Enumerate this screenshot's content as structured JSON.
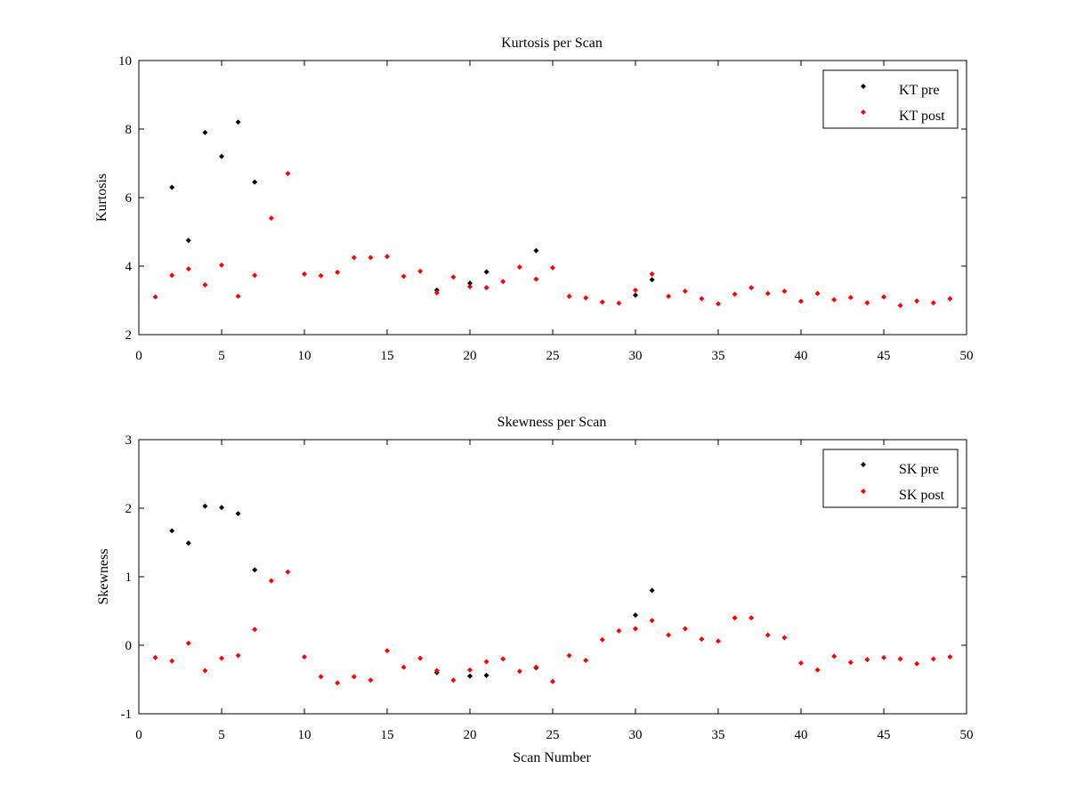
{
  "chart_data": [
    {
      "type": "scatter",
      "title": "Kurtosis per Scan",
      "xlabel": "",
      "ylabel": "Kurtosis",
      "xlim": [
        0,
        50
      ],
      "ylim": [
        2,
        10
      ],
      "xticks": [
        0,
        5,
        10,
        15,
        20,
        25,
        30,
        35,
        40,
        45,
        50
      ],
      "yticks": [
        2,
        4,
        6,
        8,
        10
      ],
      "grid": false,
      "legend_position": "top-right",
      "series": [
        {
          "name": "KT pre",
          "color": "#000000",
          "points": [
            [
              2,
              6.3
            ],
            [
              3,
              4.75
            ],
            [
              4,
              7.9
            ],
            [
              5,
              7.2
            ],
            [
              6,
              8.2
            ],
            [
              7,
              6.45
            ],
            [
              18,
              3.3
            ],
            [
              20,
              3.5
            ],
            [
              21,
              3.83
            ],
            [
              24,
              4.45
            ],
            [
              30,
              3.15
            ],
            [
              31,
              3.6
            ]
          ]
        },
        {
          "name": "KT post",
          "color": "#ff0000",
          "points": [
            [
              1,
              3.1
            ],
            [
              2,
              3.73
            ],
            [
              3,
              3.92
            ],
            [
              4,
              3.45
            ],
            [
              5,
              4.03
            ],
            [
              6,
              3.12
            ],
            [
              7,
              3.73
            ],
            [
              8,
              5.4
            ],
            [
              9,
              6.7
            ],
            [
              10,
              3.77
            ],
            [
              11,
              3.72
            ],
            [
              12,
              3.82
            ],
            [
              13,
              4.25
            ],
            [
              14,
              4.25
            ],
            [
              15,
              4.28
            ],
            [
              16,
              3.7
            ],
            [
              17,
              3.85
            ],
            [
              18,
              3.22
            ],
            [
              19,
              3.68
            ],
            [
              20,
              3.4
            ],
            [
              21,
              3.37
            ],
            [
              22,
              3.55
            ],
            [
              23,
              3.97
            ],
            [
              24,
              3.62
            ],
            [
              25,
              3.95
            ],
            [
              26,
              3.12
            ],
            [
              27,
              3.07
            ],
            [
              28,
              2.95
            ],
            [
              29,
              2.92
            ],
            [
              30,
              3.3
            ],
            [
              31,
              3.77
            ],
            [
              32,
              3.12
            ],
            [
              33,
              3.27
            ],
            [
              34,
              3.05
            ],
            [
              35,
              2.9
            ],
            [
              36,
              3.18
            ],
            [
              37,
              3.37
            ],
            [
              38,
              3.2
            ],
            [
              39,
              3.27
            ],
            [
              40,
              2.97
            ],
            [
              41,
              3.2
            ],
            [
              42,
              3.02
            ],
            [
              43,
              3.08
            ],
            [
              44,
              2.93
            ],
            [
              45,
              3.1
            ],
            [
              46,
              2.85
            ],
            [
              47,
              2.98
            ],
            [
              48,
              2.93
            ],
            [
              49,
              3.05
            ]
          ]
        }
      ]
    },
    {
      "type": "scatter",
      "title": "Skewness per Scan",
      "xlabel": "Scan Number",
      "ylabel": "Skewness",
      "xlim": [
        0,
        50
      ],
      "ylim": [
        -1,
        3
      ],
      "xticks": [
        0,
        5,
        10,
        15,
        20,
        25,
        30,
        35,
        40,
        45,
        50
      ],
      "yticks": [
        -1,
        0,
        1,
        2,
        3
      ],
      "grid": false,
      "legend_position": "top-right",
      "series": [
        {
          "name": "SK pre",
          "color": "#000000",
          "points": [
            [
              2,
              1.67
            ],
            [
              3,
              1.49
            ],
            [
              4,
              2.03
            ],
            [
              5,
              2.01
            ],
            [
              6,
              1.92
            ],
            [
              7,
              1.1
            ],
            [
              18,
              -0.4
            ],
            [
              20,
              -0.45
            ],
            [
              21,
              -0.44
            ],
            [
              24,
              -0.33
            ],
            [
              30,
              0.44
            ],
            [
              31,
              0.8
            ]
          ]
        },
        {
          "name": "SK post",
          "color": "#ff0000",
          "points": [
            [
              1,
              -0.18
            ],
            [
              2,
              -0.23
            ],
            [
              3,
              0.03
            ],
            [
              4,
              -0.37
            ],
            [
              5,
              -0.19
            ],
            [
              6,
              -0.15
            ],
            [
              7,
              0.23
            ],
            [
              8,
              0.94
            ],
            [
              9,
              1.07
            ],
            [
              10,
              -0.17
            ],
            [
              11,
              -0.46
            ],
            [
              12,
              -0.55
            ],
            [
              13,
              -0.46
            ],
            [
              14,
              -0.51
            ],
            [
              15,
              -0.08
            ],
            [
              16,
              -0.32
            ],
            [
              17,
              -0.19
            ],
            [
              18,
              -0.37
            ],
            [
              19,
              -0.51
            ],
            [
              20,
              -0.36
            ],
            [
              21,
              -0.24
            ],
            [
              22,
              -0.2
            ],
            [
              23,
              -0.38
            ],
            [
              24,
              -0.32
            ],
            [
              25,
              -0.53
            ],
            [
              26,
              -0.15
            ],
            [
              27,
              -0.22
            ],
            [
              28,
              0.08
            ],
            [
              29,
              0.21
            ],
            [
              30,
              0.24
            ],
            [
              31,
              0.36
            ],
            [
              32,
              0.15
            ],
            [
              33,
              0.24
            ],
            [
              34,
              0.09
            ],
            [
              35,
              0.06
            ],
            [
              36,
              0.4
            ],
            [
              37,
              0.4
            ],
            [
              38,
              0.15
            ],
            [
              39,
              0.11
            ],
            [
              40,
              -0.26
            ],
            [
              41,
              -0.36
            ],
            [
              42,
              -0.16
            ],
            [
              43,
              -0.25
            ],
            [
              44,
              -0.21
            ],
            [
              45,
              -0.18
            ],
            [
              46,
              -0.2
            ],
            [
              47,
              -0.27
            ],
            [
              48,
              -0.2
            ],
            [
              49,
              -0.17
            ]
          ]
        }
      ]
    }
  ]
}
